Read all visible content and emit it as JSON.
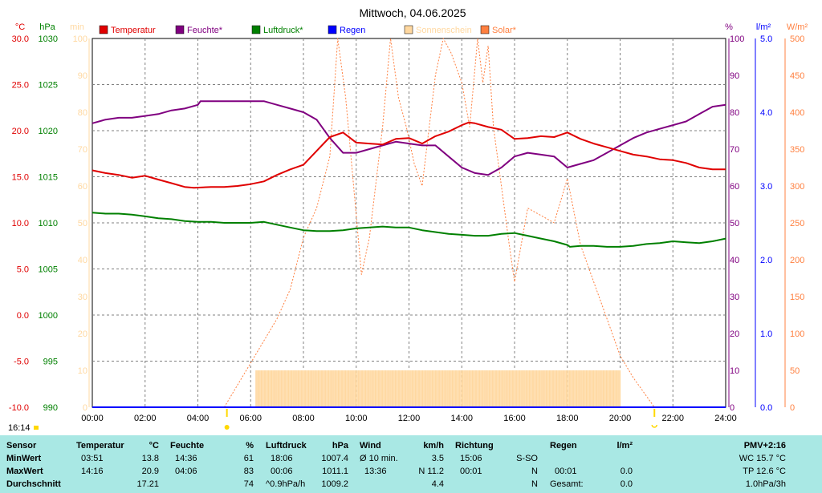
{
  "title": "Mittwoch, 04.06.2025",
  "clock": "16:14",
  "units": {
    "temp": "°C",
    "press": "hPa",
    "sun": "min",
    "hum": "%",
    "rain": "l/m²",
    "solar": "W/m²"
  },
  "axes": {
    "temp": {
      "min": -10,
      "max": 30,
      "ticks": [
        "30.0",
        "25.0",
        "20.0",
        "15.0",
        "10.0",
        "5.0",
        "0.0",
        "-5.0",
        "-10.0"
      ]
    },
    "press": {
      "min": 990,
      "max": 1030,
      "ticks": [
        "1030",
        "1025",
        "1020",
        "1015",
        "1010",
        "1005",
        "1000",
        "995",
        "990"
      ]
    },
    "sun": {
      "min": 0,
      "max": 100,
      "ticks": [
        "100",
        "90",
        "80",
        "70",
        "60",
        "50",
        "40",
        "30",
        "20",
        "10",
        "0"
      ]
    },
    "hum": {
      "min": 0,
      "max": 100,
      "ticks": [
        "100",
        "90",
        "80",
        "70",
        "60",
        "50",
        "40",
        "30",
        "20",
        "10",
        "0"
      ]
    },
    "rain": {
      "min": 0,
      "max": 5,
      "ticks": [
        "5.0",
        "4.0",
        "3.0",
        "2.0",
        "1.0",
        "0.0"
      ]
    },
    "solar": {
      "min": 0,
      "max": 500,
      "ticks": [
        "500",
        "450",
        "400",
        "350",
        "300",
        "250",
        "200",
        "150",
        "100",
        "50",
        "0"
      ]
    },
    "x": {
      "min": 0,
      "max": 24,
      "ticks": [
        "00:00",
        "02:00",
        "04:00",
        "06:00",
        "08:00",
        "10:00",
        "12:00",
        "14:00",
        "16:00",
        "18:00",
        "20:00",
        "22:00",
        "24:00"
      ]
    }
  },
  "legend": [
    {
      "label": "Temperatur",
      "color": "#e00000"
    },
    {
      "label": "Feuchte*",
      "color": "#800080"
    },
    {
      "label": "Luftdruck*",
      "color": "#008000"
    },
    {
      "label": "Regen",
      "color": "#0000ff"
    },
    {
      "label": "Sonnenschein",
      "color": "#ffd8a0"
    },
    {
      "label": "Solar*",
      "color": "#ff8040"
    }
  ],
  "markers": {
    "sunrise_hour": 5.1,
    "sunset_hour": 21.3
  },
  "chart_data": {
    "type": "line",
    "x_unit": "hour",
    "series": [
      {
        "name": "Temperatur",
        "unit": "°C",
        "color": "#e00000",
        "x": [
          0,
          0.5,
          1,
          1.5,
          2,
          2.5,
          3,
          3.5,
          3.85,
          4.5,
          5,
          5.5,
          6,
          6.5,
          7,
          7.5,
          8,
          8.5,
          9,
          9.5,
          10,
          10.5,
          11,
          11.5,
          12,
          12.5,
          13,
          13.5,
          14,
          14.27,
          14.5,
          15,
          15.5,
          16,
          16.5,
          17,
          17.5,
          18,
          18.5,
          19,
          19.5,
          20,
          20.5,
          21,
          21.5,
          22,
          22.5,
          23,
          23.5,
          24
        ],
        "y": [
          15.7,
          15.4,
          15.2,
          14.9,
          15.1,
          14.7,
          14.3,
          13.9,
          13.8,
          13.9,
          13.9,
          14,
          14.2,
          14.5,
          15.2,
          15.8,
          16.3,
          17.8,
          19.3,
          19.8,
          18.7,
          18.6,
          18.5,
          19.1,
          19.2,
          18.6,
          19.4,
          19.9,
          20.6,
          20.9,
          20.8,
          20.4,
          20.1,
          19.1,
          19.2,
          19.4,
          19.3,
          19.8,
          19.1,
          18.6,
          18.2,
          17.8,
          17.4,
          17.2,
          16.9,
          16.8,
          16.5,
          16,
          15.8,
          15.8
        ]
      },
      {
        "name": "Feuchte*",
        "unit": "%",
        "color": "#800080",
        "x": [
          0,
          0.5,
          1,
          1.5,
          2,
          2.5,
          3,
          3.5,
          4,
          4.1,
          4.5,
          5,
          5.5,
          6,
          6.5,
          7,
          7.5,
          8,
          8.5,
          9,
          9.5,
          10,
          10.5,
          11,
          11.5,
          12,
          12.5,
          13,
          13.5,
          14,
          14.5,
          15,
          15.5,
          16,
          16.5,
          17,
          17.5,
          18,
          18.5,
          19,
          19.5,
          20,
          20.5,
          21,
          21.5,
          22,
          22.5,
          23,
          23.5,
          24
        ],
        "y": [
          77,
          78,
          78.5,
          78.5,
          79,
          79.5,
          80.5,
          81,
          82,
          83,
          83,
          83,
          83,
          83,
          83,
          82,
          81,
          80,
          78,
          73,
          69,
          69,
          70,
          71,
          72,
          71.5,
          71,
          71,
          68,
          65,
          63.5,
          63,
          65,
          68,
          69,
          68.5,
          68,
          65,
          66,
          67,
          69,
          71,
          73,
          74.5,
          75.5,
          76.5,
          77.5,
          79.5,
          81.5,
          82
        ]
      },
      {
        "name": "Luftdruck*",
        "unit": "hPa",
        "color": "#008000",
        "x": [
          0,
          0.5,
          1,
          1.5,
          2,
          2.5,
          3,
          3.5,
          4,
          4.5,
          5,
          5.5,
          6,
          6.5,
          7,
          7.5,
          8,
          8.5,
          9,
          9.5,
          10,
          10.5,
          11,
          11.5,
          12,
          12.5,
          13,
          13.5,
          14,
          14.5,
          15,
          15.5,
          16,
          16.5,
          17,
          17.5,
          18,
          18.1,
          18.5,
          19,
          19.5,
          20,
          20.5,
          21,
          21.5,
          22,
          22.5,
          23,
          23.5,
          24
        ],
        "y": [
          1011.1,
          1011.0,
          1011.0,
          1010.9,
          1010.7,
          1010.5,
          1010.4,
          1010.2,
          1010.1,
          1010.1,
          1010.0,
          1010.0,
          1010.0,
          1010.1,
          1009.8,
          1009.5,
          1009.2,
          1009.1,
          1009.1,
          1009.2,
          1009.4,
          1009.5,
          1009.6,
          1009.5,
          1009.5,
          1009.2,
          1009.0,
          1008.8,
          1008.7,
          1008.6,
          1008.6,
          1008.8,
          1008.9,
          1008.6,
          1008.3,
          1008.0,
          1007.6,
          1007.4,
          1007.5,
          1007.5,
          1007.4,
          1007.4,
          1007.5,
          1007.7,
          1007.8,
          1008.0,
          1007.9,
          1007.8,
          1008.0,
          1008.3
        ]
      },
      {
        "name": "Regen",
        "unit": "l/m²",
        "color": "#0000ff",
        "x": [
          0,
          24
        ],
        "y": [
          0,
          0
        ]
      },
      {
        "name": "Sonnenschein",
        "unit": "min",
        "color": "#ffd8a0",
        "x": [
          6.2,
          20.0
        ],
        "y": [
          10,
          10
        ]
      },
      {
        "name": "Solar*",
        "unit": "W/m²",
        "color": "#ff8040",
        "x": [
          5,
          5.5,
          6,
          6.5,
          7,
          7.5,
          8,
          8.5,
          9,
          9.3,
          9.6,
          9.9,
          10.2,
          10.5,
          11,
          11.3,
          11.6,
          11.9,
          12.2,
          12.5,
          13,
          13.3,
          13.6,
          14,
          14.3,
          14.6,
          14.8,
          15,
          15.2,
          15.5,
          15.8,
          16,
          16.5,
          17,
          17.5,
          18,
          18.5,
          19,
          19.5,
          20,
          20.5,
          21,
          21.3
        ],
        "y": [
          0,
          30,
          60,
          90,
          120,
          160,
          230,
          270,
          340,
          500,
          420,
          300,
          180,
          230,
          380,
          500,
          420,
          380,
          330,
          300,
          450,
          500,
          480,
          440,
          380,
          500,
          440,
          490,
          380,
          300,
          220,
          170,
          270,
          260,
          250,
          310,
          220,
          170,
          120,
          70,
          40,
          15,
          0
        ]
      }
    ]
  },
  "stats": {
    "headers": {
      "sensor": "Sensor",
      "temp": "Temperatur",
      "temp_u": "°C",
      "hum": "Feuchte",
      "hum_u": "%",
      "press": "Luftdruck",
      "press_u": "hPa",
      "wind": "Wind",
      "wind_u": "km/h",
      "dir": "Richtung",
      "rain": "Regen",
      "rain_u": "l/m²",
      "pmv": "PMV+2:16"
    },
    "rows": [
      {
        "label": "MinWert",
        "temp_t": "03:51",
        "temp_v": "13.8",
        "hum_t": "14:36",
        "hum_v": "61",
        "press_t": "18:06",
        "press_v": "1007.4",
        "wind_t": "Ø 10 min.",
        "wind_v": "3.5",
        "dir_t": "15:06",
        "dir_v": "S-SO",
        "rain_t": "",
        "rain_v": "",
        "extra": "WC 15.7 °C"
      },
      {
        "label": "MaxWert",
        "temp_t": "14:16",
        "temp_v": "20.9",
        "hum_t": "04:06",
        "hum_v": "83",
        "press_t": "00:06",
        "press_v": "1011.1",
        "wind_t": "13:36",
        "wind_v": "N 11.2",
        "dir_t": "00:01",
        "dir_v": "N",
        "rain_t": "00:01",
        "rain_v": "0.0",
        "extra": "TP 12.6 °C"
      },
      {
        "label": "Durchschnitt",
        "temp_t": "",
        "temp_v": "17.21",
        "hum_t": "",
        "hum_v": "74",
        "press_t": "^0.9hPa/h",
        "press_v": "1009.2",
        "wind_t": "",
        "wind_v": "4.4",
        "dir_t": "",
        "dir_v": "N",
        "rain_t": "Gesamt:",
        "rain_v": "0.0",
        "extra": "1.0hPa/3h"
      }
    ]
  }
}
